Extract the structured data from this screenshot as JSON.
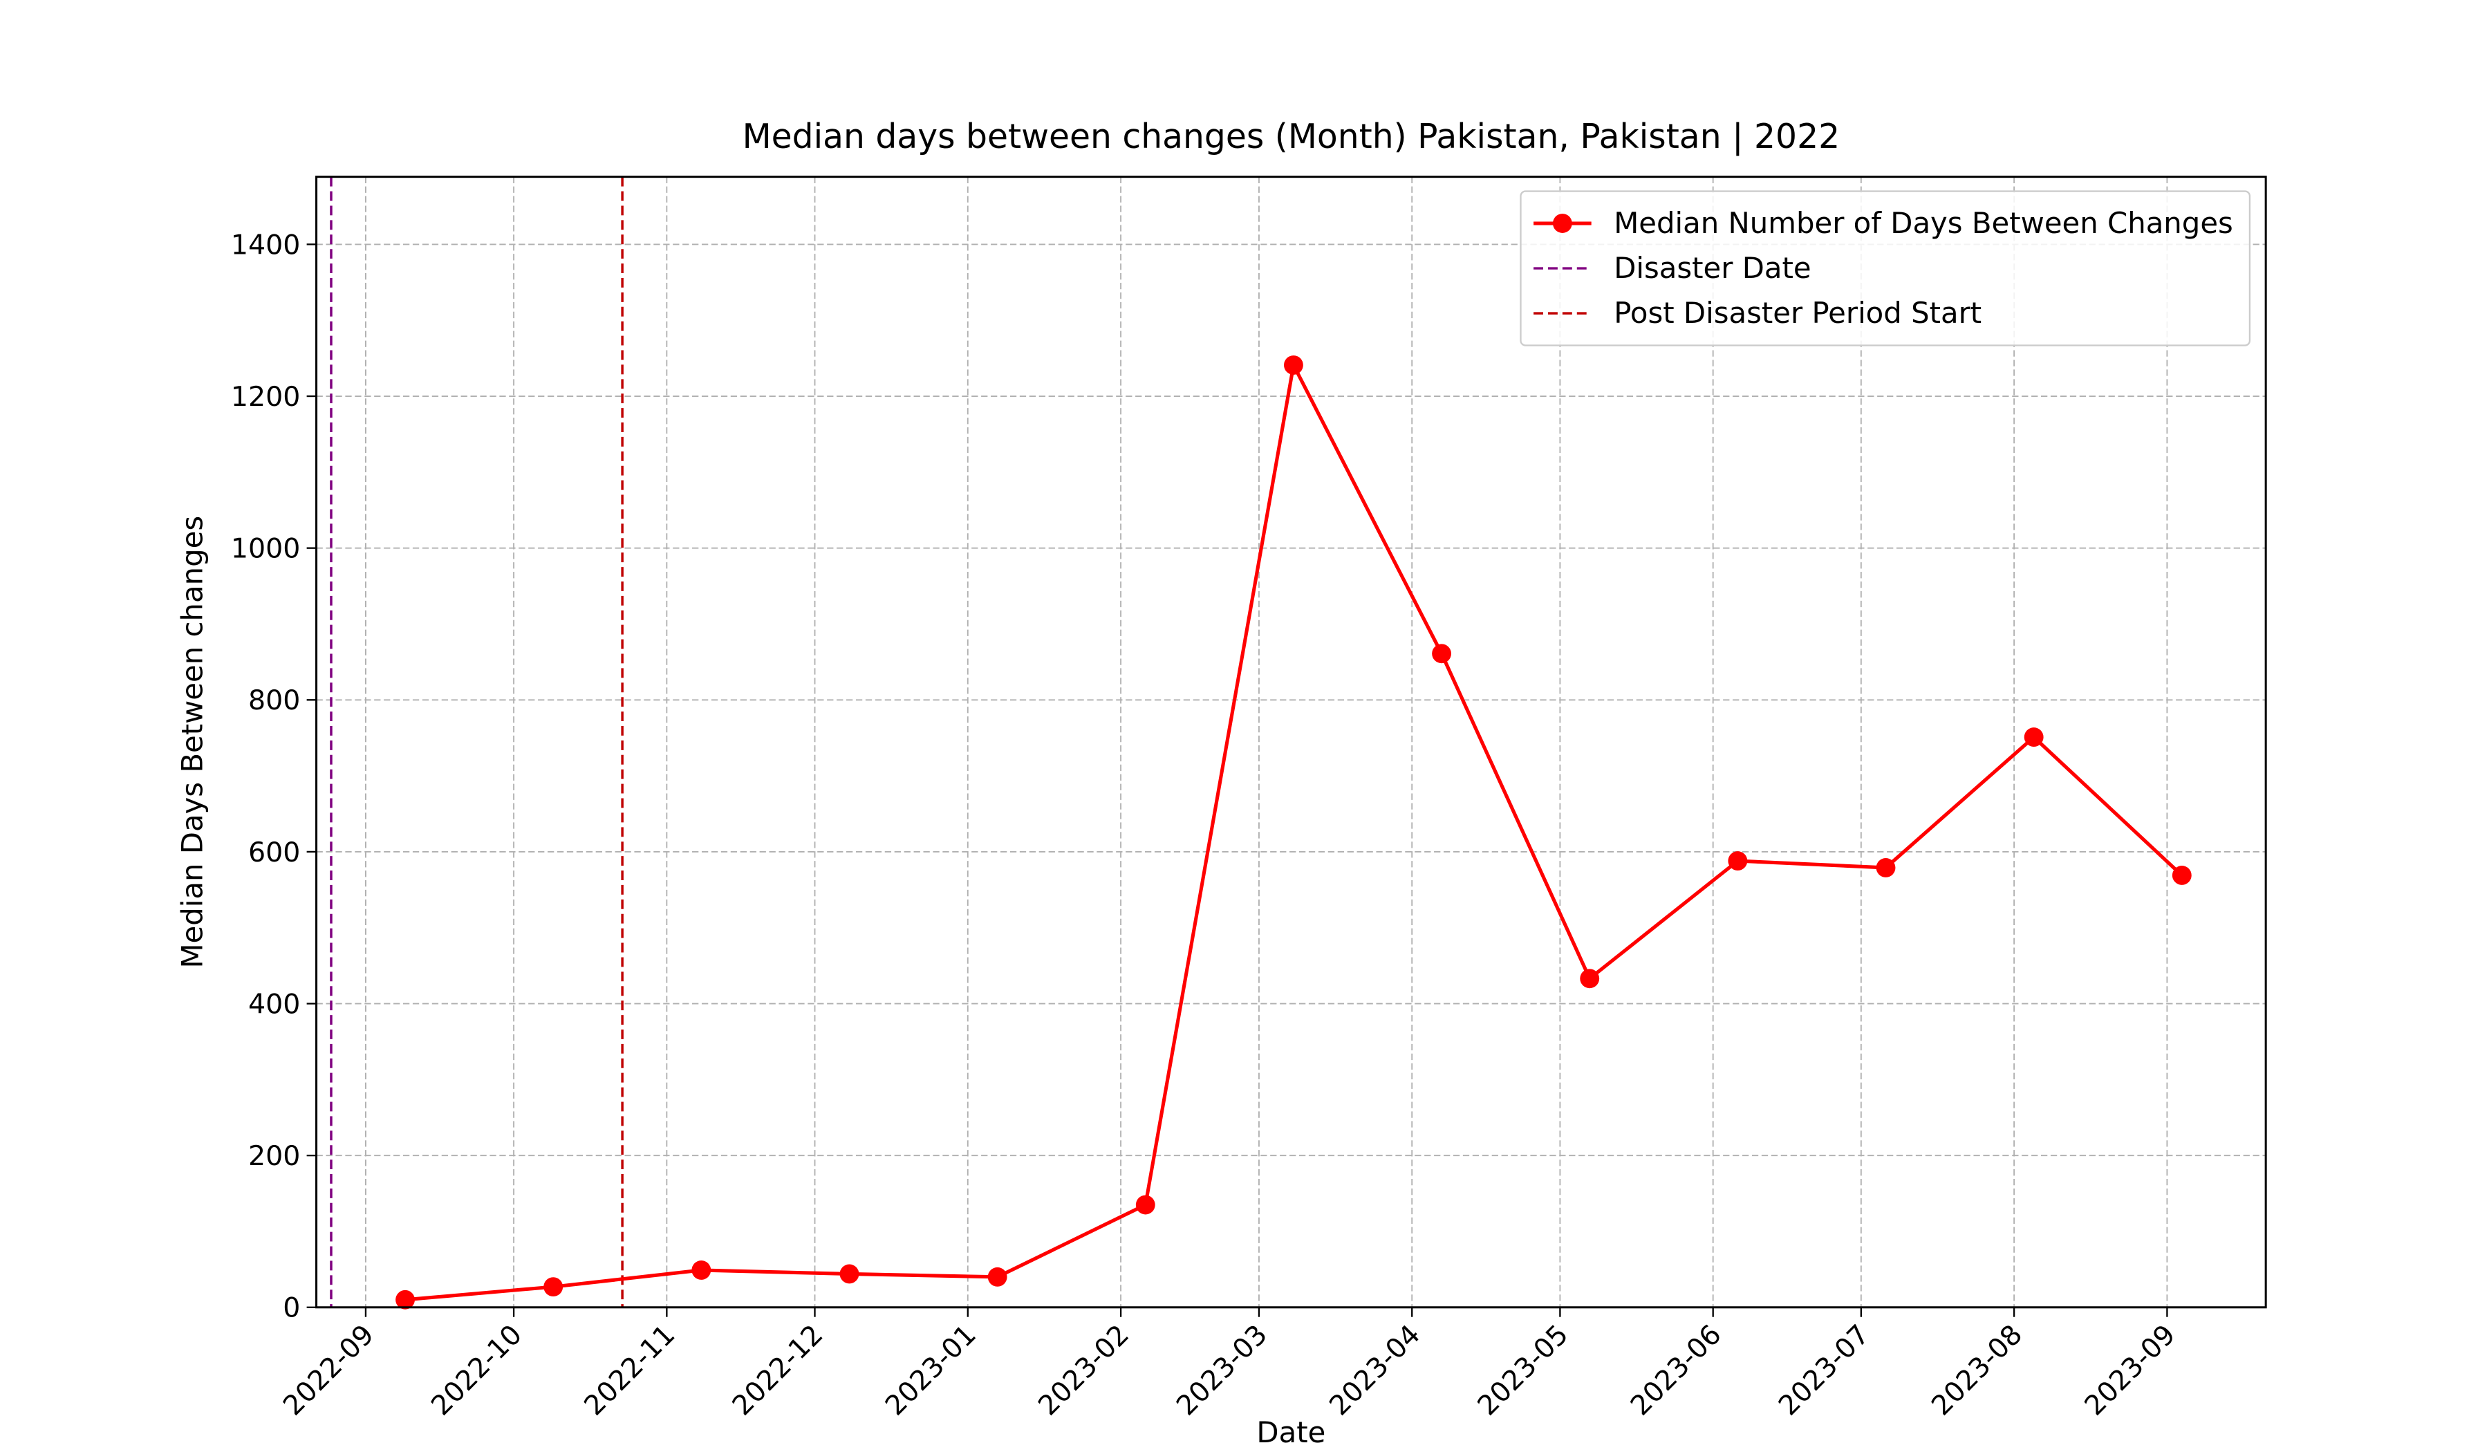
{
  "chart_data": {
    "type": "line",
    "title": "Median days between changes (Month) Pakistan, Pakistan | 2022",
    "x_label": "Date",
    "y_label": "Median Days Between changes",
    "x": [
      "2022-09-09",
      "2022-10-09",
      "2022-11-08",
      "2022-12-08",
      "2023-01-07",
      "2023-02-06",
      "2023-03-08",
      "2023-04-07",
      "2023-05-07",
      "2023-06-06",
      "2023-07-06",
      "2023-08-05",
      "2023-09-04"
    ],
    "series": [
      {
        "name": "Median Number of Days Between Changes",
        "color": "#ff0000",
        "values": [
          10,
          27,
          49,
          44,
          40,
          135,
          1241,
          861,
          433,
          588,
          579,
          751,
          569
        ]
      }
    ],
    "vlines": [
      {
        "name": "Disaster Date",
        "x": "2022-08-25",
        "color": "#800080"
      },
      {
        "name": "Post Disaster Period Start",
        "x": "2022-10-23",
        "color": "#c00000"
      }
    ],
    "xlim": [
      "2022-08-22",
      "2023-09-21"
    ],
    "xticks": [
      {
        "value": "2022-09-01",
        "label": "2022-09"
      },
      {
        "value": "2022-10-01",
        "label": "2022-10"
      },
      {
        "value": "2022-11-01",
        "label": "2022-11"
      },
      {
        "value": "2022-12-01",
        "label": "2022-12"
      },
      {
        "value": "2023-01-01",
        "label": "2023-01"
      },
      {
        "value": "2023-02-01",
        "label": "2023-02"
      },
      {
        "value": "2023-03-01",
        "label": "2023-03"
      },
      {
        "value": "2023-04-01",
        "label": "2023-04"
      },
      {
        "value": "2023-05-01",
        "label": "2023-05"
      },
      {
        "value": "2023-06-01",
        "label": "2023-06"
      },
      {
        "value": "2023-07-01",
        "label": "2023-07"
      },
      {
        "value": "2023-08-01",
        "label": "2023-08"
      },
      {
        "value": "2023-09-01",
        "label": "2023-09"
      }
    ],
    "ylim": [
      0,
      1489
    ],
    "yticks": [
      0,
      200,
      400,
      600,
      800,
      1000,
      1200,
      1400
    ],
    "grid": true,
    "legend": "upper right"
  }
}
